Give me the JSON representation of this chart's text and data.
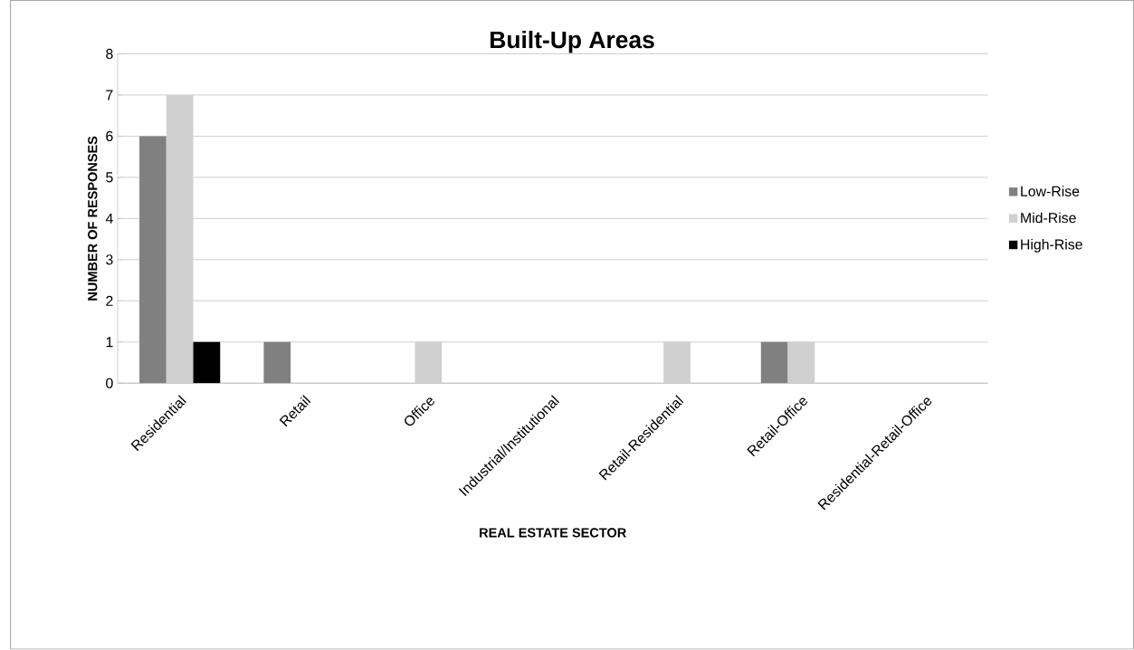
{
  "chart_data": {
    "type": "bar",
    "title": "Built-Up Areas",
    "xlabel": "REAL ESTATE SECTOR",
    "ylabel": "NUMBER OF RESPONSES",
    "categories": [
      "Residential",
      "Retail",
      "Office",
      "Industrial/Institutional",
      "Retail-Residential",
      "Retail-Office",
      "Residential-Retail-Office"
    ],
    "series": [
      {
        "name": "Low-Rise",
        "color": "#808080",
        "values": [
          6,
          1,
          0,
          0,
          0,
          1,
          0
        ]
      },
      {
        "name": "Mid-Rise",
        "color": "#d0d0d0",
        "values": [
          7,
          0,
          1,
          0,
          1,
          1,
          0
        ]
      },
      {
        "name": "High-Rise",
        "color": "#000000",
        "values": [
          1,
          0,
          0,
          0,
          0,
          0,
          0
        ]
      }
    ],
    "ylim": [
      0,
      8
    ],
    "yticks": [
      0,
      1,
      2,
      3,
      4,
      5,
      6,
      7,
      8
    ],
    "grid": "y",
    "legend": "right"
  }
}
